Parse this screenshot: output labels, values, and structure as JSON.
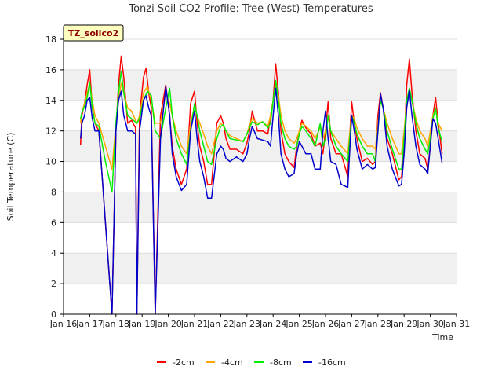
{
  "chart_data": {
    "type": "line",
    "title": "Tonzi Soil CO2 Profile: Tree (West) Temperatures",
    "xlabel": "Time",
    "ylabel": "Soil Temperature (C)",
    "tag": "TZ_soilco2",
    "xlim": [
      16,
      31
    ],
    "ylim": [
      0,
      18
    ],
    "x_ticks": [
      16,
      17,
      18,
      19,
      20,
      21,
      22,
      23,
      24,
      25,
      26,
      27,
      28,
      29,
      30,
      31
    ],
    "x_tick_labels": [
      "Jan 16",
      "Jan 17",
      "Jan 18",
      "Jan 19",
      "Jan 20",
      "Jan 21",
      "Jan 22",
      "Jan 23",
      "Jan 24",
      "Jan 25",
      "Jan 26",
      "Jan 27",
      "Jan 28",
      "Jan 29",
      "Jan 30",
      "Jan 31"
    ],
    "y_ticks": [
      0,
      2,
      4,
      6,
      8,
      10,
      12,
      14,
      16,
      18
    ],
    "grid": true,
    "legend_position": "bottom",
    "series": [
      {
        "name": "-2cm",
        "color": "#ff0000",
        "x": [
          16.65,
          16.7,
          16.8,
          16.9,
          17.0,
          17.1,
          17.2,
          17.35,
          17.6,
          17.85,
          18.0,
          18.1,
          18.2,
          18.3,
          18.45,
          18.6,
          18.75,
          18.8,
          18.9,
          19.05,
          19.15,
          19.25,
          19.35,
          19.5,
          19.7,
          19.9,
          20.05,
          20.15,
          20.3,
          20.5,
          20.7,
          20.85,
          21.0,
          21.1,
          21.2,
          21.35,
          21.5,
          21.65,
          21.85,
          22.0,
          22.1,
          22.2,
          22.35,
          22.6,
          22.85,
          23.0,
          23.1,
          23.2,
          23.4,
          23.6,
          23.8,
          23.9,
          24.0,
          24.1,
          24.2,
          24.3,
          24.45,
          24.6,
          24.8,
          24.9,
          25.0,
          25.1,
          25.25,
          25.45,
          25.6,
          25.8,
          25.9,
          26.0,
          26.1,
          26.2,
          26.4,
          26.6,
          26.85,
          26.9,
          27.0,
          27.1,
          27.2,
          27.4,
          27.6,
          27.8,
          27.9,
          28.0,
          28.1,
          28.2,
          28.35,
          28.55,
          28.8,
          28.9,
          29.0,
          29.1,
          29.2,
          29.3,
          29.45,
          29.6,
          29.8,
          29.9,
          30.0,
          30.1,
          30.2,
          30.3,
          30.45
        ],
        "y": [
          11.1,
          13.0,
          13.8,
          15.0,
          16.0,
          13.5,
          12.5,
          12.0,
          6.0,
          0.0,
          12.0,
          15.0,
          16.9,
          15.5,
          12.5,
          12.7,
          12.2,
          0.0,
          13.0,
          15.5,
          16.1,
          14.5,
          13.5,
          0.0,
          13.0,
          15.0,
          13.0,
          11.0,
          9.5,
          8.5,
          9.5,
          13.8,
          14.6,
          12.5,
          11.0,
          10.0,
          8.5,
          8.5,
          12.5,
          13.0,
          12.5,
          11.5,
          10.8,
          10.8,
          10.5,
          11.2,
          12.0,
          13.3,
          12.0,
          12.0,
          11.8,
          13.0,
          14.0,
          16.4,
          14.5,
          12.0,
          10.5,
          10.0,
          9.6,
          11.0,
          12.0,
          12.7,
          12.2,
          11.8,
          11.0,
          11.2,
          10.5,
          12.0,
          13.9,
          11.5,
          10.5,
          10.5,
          9.0,
          11.0,
          13.9,
          12.5,
          11.5,
          10.0,
          10.2,
          9.8,
          10.0,
          13.0,
          14.5,
          13.5,
          11.5,
          10.5,
          8.8,
          9.0,
          11.0,
          15.0,
          16.7,
          14.5,
          12.0,
          10.5,
          10.2,
          9.5,
          11.0,
          13.0,
          14.2,
          12.5,
          10.5
        ]
      },
      {
        "name": "-4cm",
        "color": "#ffa500",
        "x": [
          16.65,
          16.7,
          16.8,
          16.9,
          17.0,
          17.1,
          17.2,
          17.35,
          17.6,
          17.85,
          18.0,
          18.1,
          18.2,
          18.3,
          18.45,
          18.6,
          18.8,
          18.9,
          19.05,
          19.2,
          19.35,
          19.5,
          19.7,
          19.9,
          20.05,
          20.15,
          20.3,
          20.5,
          20.7,
          20.85,
          21.0,
          21.1,
          21.2,
          21.35,
          21.5,
          21.65,
          21.85,
          22.0,
          22.1,
          22.2,
          22.35,
          22.6,
          22.85,
          23.0,
          23.1,
          23.2,
          23.4,
          23.6,
          23.8,
          23.9,
          24.0,
          24.1,
          24.2,
          24.3,
          24.45,
          24.6,
          24.8,
          24.9,
          25.0,
          25.1,
          25.25,
          25.45,
          25.6,
          25.8,
          25.9,
          26.0,
          26.1,
          26.2,
          26.4,
          26.6,
          26.85,
          26.9,
          27.0,
          27.1,
          27.2,
          27.4,
          27.6,
          27.8,
          27.9,
          28.0,
          28.1,
          28.2,
          28.35,
          28.55,
          28.8,
          28.9,
          29.0,
          29.1,
          29.2,
          29.3,
          29.45,
          29.6,
          29.8,
          29.9,
          30.0,
          30.1,
          30.2,
          30.3,
          30.45
        ],
        "y": [
          12.5,
          13.2,
          13.8,
          14.5,
          15.0,
          14.0,
          13.0,
          12.5,
          11.0,
          9.5,
          12.5,
          14.0,
          15.1,
          14.5,
          13.5,
          13.3,
          12.5,
          13.0,
          14.5,
          14.9,
          14.0,
          12.5,
          12.5,
          14.5,
          13.8,
          13.0,
          12.0,
          11.0,
          10.5,
          12.5,
          13.6,
          13.0,
          12.5,
          11.8,
          11.0,
          10.5,
          12.0,
          12.5,
          12.3,
          12.0,
          11.7,
          11.5,
          11.3,
          11.8,
          12.4,
          12.8,
          12.5,
          12.6,
          12.3,
          13.0,
          14.0,
          15.0,
          14.3,
          13.0,
          12.0,
          11.5,
          11.2,
          11.5,
          12.0,
          12.5,
          12.3,
          12.0,
          11.5,
          12.2,
          11.5,
          12.0,
          13.0,
          12.0,
          11.5,
          11.0,
          10.5,
          11.5,
          13.0,
          12.8,
          12.2,
          11.5,
          11.0,
          11.0,
          10.8,
          12.5,
          14.0,
          13.5,
          12.5,
          11.5,
          10.5,
          10.5,
          12.0,
          14.0,
          14.5,
          14.0,
          12.8,
          12.0,
          11.5,
          11.0,
          12.0,
          13.0,
          13.5,
          12.5,
          12.0
        ]
      },
      {
        "name": "-8cm",
        "color": "#00ee00",
        "x": [
          16.65,
          16.7,
          16.8,
          16.9,
          17.0,
          17.1,
          17.2,
          17.35,
          17.6,
          17.85,
          18.0,
          18.1,
          18.2,
          18.3,
          18.45,
          18.6,
          18.8,
          18.9,
          19.05,
          19.2,
          19.35,
          19.5,
          19.7,
          19.9,
          20.05,
          20.15,
          20.3,
          20.5,
          20.7,
          20.85,
          21.0,
          21.1,
          21.2,
          21.35,
          21.5,
          21.65,
          21.85,
          22.0,
          22.1,
          22.2,
          22.35,
          22.6,
          22.85,
          23.0,
          23.1,
          23.2,
          23.4,
          23.6,
          23.8,
          23.9,
          24.0,
          24.1,
          24.2,
          24.3,
          24.45,
          24.6,
          24.8,
          24.9,
          25.0,
          25.1,
          25.25,
          25.45,
          25.6,
          25.8,
          25.9,
          26.0,
          26.1,
          26.2,
          26.4,
          26.6,
          26.85,
          26.9,
          27.0,
          27.1,
          27.2,
          27.4,
          27.6,
          27.8,
          27.9,
          28.0,
          28.1,
          28.2,
          28.35,
          28.55,
          28.8,
          28.9,
          29.0,
          29.1,
          29.2,
          29.3,
          29.45,
          29.6,
          29.8,
          29.9,
          30.0,
          30.1,
          30.2,
          30.3,
          30.45
        ],
        "y": [
          12.8,
          13.2,
          13.6,
          14.2,
          15.2,
          13.5,
          12.5,
          12.3,
          10.0,
          8.0,
          12.5,
          14.5,
          15.9,
          14.5,
          13.0,
          12.8,
          12.5,
          12.8,
          14.0,
          14.6,
          14.3,
          12.0,
          11.5,
          13.5,
          14.8,
          13.0,
          11.5,
          10.5,
          9.8,
          12.0,
          13.8,
          13.0,
          12.0,
          11.0,
          10.0,
          9.8,
          11.5,
          12.3,
          12.4,
          12.0,
          11.5,
          11.4,
          11.3,
          11.8,
          12.2,
          12.6,
          12.4,
          12.6,
          12.2,
          12.5,
          14.0,
          15.3,
          14.0,
          12.5,
          11.5,
          11.0,
          10.8,
          11.0,
          11.8,
          12.3,
          12.0,
          11.5,
          11.0,
          12.5,
          11.0,
          11.5,
          13.0,
          12.0,
          11.0,
          10.5,
          10.0,
          11.0,
          13.0,
          12.5,
          11.8,
          11.0,
          10.5,
          10.5,
          10.0,
          12.0,
          14.0,
          13.5,
          12.0,
          10.8,
          9.5,
          9.5,
          11.5,
          14.0,
          14.8,
          14.0,
          12.5,
          11.5,
          10.8,
          10.5,
          11.5,
          12.8,
          13.5,
          12.2,
          11.3
        ]
      },
      {
        "name": "-16cm",
        "color": "#0000cc",
        "x": [
          16.65,
          16.7,
          16.8,
          16.9,
          17.0,
          17.1,
          17.2,
          17.35,
          17.6,
          17.85,
          18.0,
          18.1,
          18.2,
          18.3,
          18.45,
          18.6,
          18.75,
          18.8,
          18.9,
          19.05,
          19.15,
          19.25,
          19.35,
          19.5,
          19.7,
          19.9,
          20.05,
          20.15,
          20.3,
          20.5,
          20.7,
          20.85,
          21.0,
          21.1,
          21.2,
          21.35,
          21.5,
          21.65,
          21.85,
          22.0,
          22.1,
          22.2,
          22.35,
          22.6,
          22.85,
          23.0,
          23.1,
          23.2,
          23.4,
          23.6,
          23.8,
          23.9,
          24.0,
          24.1,
          24.2,
          24.3,
          24.45,
          24.6,
          24.8,
          24.9,
          25.0,
          25.1,
          25.25,
          25.45,
          25.6,
          25.8,
          25.9,
          26.0,
          26.1,
          26.2,
          26.4,
          26.6,
          26.85,
          26.9,
          27.0,
          27.1,
          27.2,
          27.4,
          27.6,
          27.8,
          27.9,
          28.0,
          28.1,
          28.2,
          28.35,
          28.55,
          28.8,
          28.9,
          29.0,
          29.1,
          29.2,
          29.3,
          29.45,
          29.6,
          29.8,
          29.9,
          30.0,
          30.1,
          30.2,
          30.3,
          30.45
        ],
        "y": [
          11.5,
          12.5,
          13.0,
          14.0,
          14.2,
          12.8,
          12.0,
          12.0,
          6.0,
          0.0,
          12.0,
          14.0,
          14.6,
          13.0,
          12.0,
          12.0,
          11.8,
          0.0,
          12.0,
          14.0,
          14.3,
          13.5,
          13.0,
          0.0,
          11.5,
          14.9,
          13.0,
          10.5,
          9.0,
          8.1,
          8.5,
          12.0,
          13.3,
          11.5,
          10.0,
          9.0,
          7.6,
          7.6,
          10.5,
          11.0,
          10.8,
          10.2,
          10.0,
          10.3,
          10.0,
          10.5,
          11.5,
          12.3,
          11.5,
          11.4,
          11.3,
          11.0,
          13.0,
          14.8,
          13.0,
          10.5,
          9.5,
          9.0,
          9.2,
          10.5,
          11.3,
          11.0,
          10.5,
          10.5,
          9.5,
          9.5,
          12.0,
          13.3,
          11.5,
          10.0,
          9.8,
          8.5,
          8.3,
          10.0,
          13.0,
          12.0,
          10.8,
          9.5,
          9.8,
          9.5,
          9.6,
          12.0,
          14.4,
          13.5,
          11.0,
          9.5,
          8.4,
          8.5,
          10.5,
          13.5,
          14.7,
          13.0,
          11.0,
          9.8,
          9.5,
          9.2,
          11.0,
          12.8,
          12.5,
          11.5,
          9.9
        ]
      }
    ]
  }
}
